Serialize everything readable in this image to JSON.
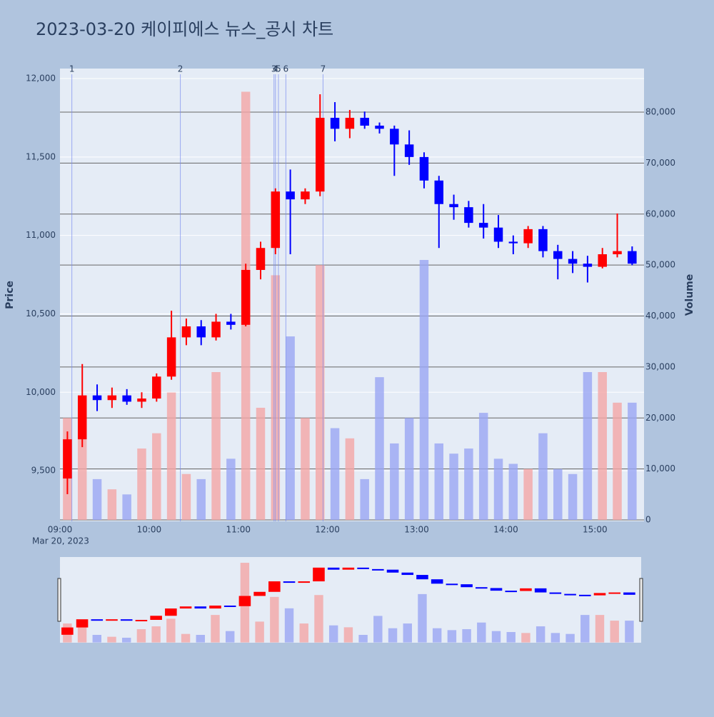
{
  "chart_data": {
    "type": "candlestick",
    "title": "2023-03-20 케이피에스 뉴스_공시 차트",
    "title_color": "#e8525e",
    "ylabel": "Price",
    "y2label": "Volume",
    "date_label": "Mar 20, 2023",
    "x": [
      "09:00",
      "09:10",
      "09:20",
      "09:30",
      "09:40",
      "09:50",
      "10:00",
      "10:10",
      "10:20",
      "10:30",
      "10:40",
      "10:50",
      "11:00",
      "11:10",
      "11:20",
      "11:30",
      "11:40",
      "11:50",
      "12:00",
      "12:10",
      "12:20",
      "12:30",
      "12:40",
      "12:50",
      "13:00",
      "13:10",
      "13:20",
      "13:30",
      "13:40",
      "13:50",
      "14:00",
      "14:10",
      "14:20",
      "14:30",
      "14:40",
      "14:50",
      "15:00",
      "15:10",
      "15:20"
    ],
    "open": [
      9450,
      9700,
      9980,
      9950,
      9980,
      9940,
      9960,
      10100,
      10350,
      10420,
      10350,
      10450,
      10430,
      10780,
      10920,
      11280,
      11230,
      11280,
      11750,
      11680,
      11750,
      11700,
      11680,
      11580,
      11500,
      11350,
      11200,
      11180,
      11080,
      11050,
      10960,
      10950,
      11040,
      10900,
      10850,
      10820,
      10800,
      10880,
      10900
    ],
    "high": [
      9750,
      10180,
      10050,
      10030,
      10020,
      10000,
      10120,
      10520,
      10470,
      10460,
      10500,
      10500,
      10820,
      10960,
      11300,
      11420,
      11300,
      11900,
      11850,
      11800,
      11790,
      11720,
      11700,
      11670,
      11530,
      11380,
      11260,
      11220,
      11200,
      11130,
      11000,
      11060,
      11060,
      10940,
      10900,
      10870,
      10920,
      11140,
      10930
    ],
    "low": [
      9350,
      9650,
      9880,
      9900,
      9920,
      9900,
      9940,
      10080,
      10300,
      10300,
      10330,
      10400,
      10420,
      10720,
      10880,
      10880,
      11200,
      11250,
      11600,
      11620,
      11680,
      11650,
      11380,
      11450,
      11300,
      10920,
      11100,
      11050,
      10980,
      10920,
      10880,
      10920,
      10860,
      10720,
      10760,
      10700,
      10790,
      10860,
      10810
    ],
    "close": [
      9700,
      9980,
      9950,
      9980,
      9940,
      9960,
      10100,
      10350,
      10420,
      10350,
      10450,
      10430,
      10780,
      10920,
      11280,
      11230,
      11280,
      11750,
      11680,
      11750,
      11700,
      11680,
      11580,
      11500,
      11350,
      11200,
      11180,
      11080,
      11050,
      10960,
      10950,
      11040,
      10900,
      10850,
      10820,
      10800,
      10880,
      10900,
      10820
    ],
    "volume": [
      20000,
      22000,
      8000,
      6000,
      5000,
      14000,
      17000,
      25000,
      9000,
      8000,
      29000,
      12000,
      84000,
      22000,
      48000,
      36000,
      20000,
      50000,
      18000,
      16000,
      8000,
      28000,
      15000,
      20000,
      51000,
      15000,
      13000,
      14000,
      21000,
      12000,
      11000,
      10000,
      17000,
      10000,
      9000,
      29000,
      29000,
      23000,
      23000
    ],
    "increasing_color": "#ff0000",
    "decreasing_color": "#0000ff",
    "volume_up_color": "#f4a6a6",
    "volume_down_color": "#9aa6f4",
    "xlim": [
      "09:00",
      "15:33"
    ],
    "xticks": [
      "09:00",
      "10:00",
      "11:00",
      "12:00",
      "13:00",
      "14:00",
      "15:00"
    ],
    "ylim": [
      9177,
      12064
    ],
    "yticks": [
      {
        "value": 9500,
        "label": "9,500"
      },
      {
        "value": 10000,
        "label": "10,000"
      },
      {
        "value": 10500,
        "label": "10,500"
      },
      {
        "value": 11000,
        "label": "11,000"
      },
      {
        "value": 11500,
        "label": "11,500"
      },
      {
        "value": 12000,
        "label": "12,000"
      }
    ],
    "y2lim": [
      -280,
      88550
    ],
    "y2ticks": [
      0,
      {
        "value": 10000,
        "label": "10,000"
      },
      {
        "value": 20000,
        "label": "20,000"
      },
      {
        "value": 30000,
        "label": "30,000"
      },
      {
        "value": 40000,
        "label": "40,000"
      },
      {
        "value": 50000,
        "label": "50,000"
      },
      {
        "value": 60000,
        "label": "60,000"
      },
      {
        "value": 70000,
        "label": "70,000"
      },
      {
        "value": 80000,
        "label": "80,000"
      }
    ],
    "news": [
      {
        "label": "1",
        "time": "09:08"
      },
      {
        "label": "2",
        "time": "10:21"
      },
      {
        "label": "3",
        "time": "11:24"
      },
      {
        "label": "4",
        "time": "11:25"
      },
      {
        "label": "5",
        "time": "11:27"
      },
      {
        "label": "6",
        "time": "11:32"
      },
      {
        "label": "7",
        "time": "11:57"
      }
    ],
    "rangeslider": true
  }
}
